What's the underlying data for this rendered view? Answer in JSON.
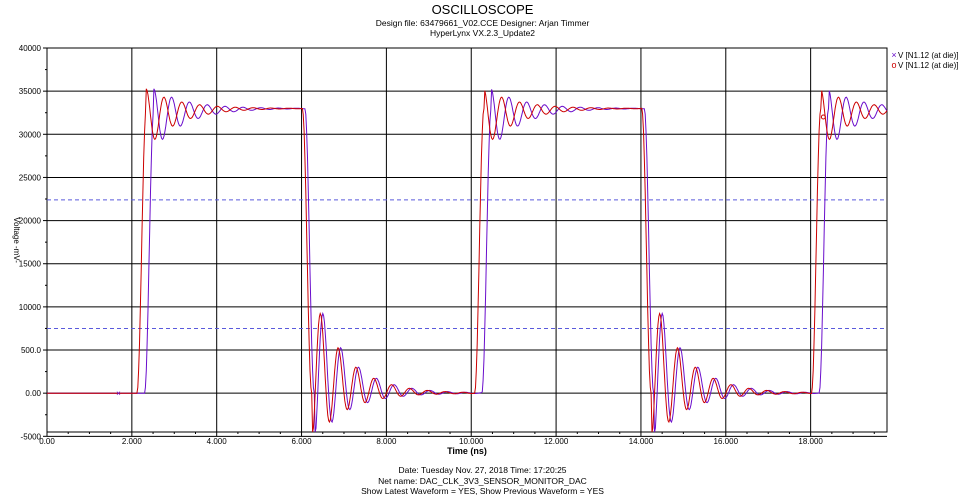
{
  "header": {
    "title": "OSCILLOSCOPE",
    "design_line": "Design file: 63479661_V02.CCE          Designer: Arjan Timmer",
    "version_line": "HyperLynx VX.2.3_Update2"
  },
  "footer": {
    "date_line": "Date: Tuesday Nov. 27, 2018  Time: 17:20:25",
    "net_line": "Net name: DAC_CLK_3V3_SENSOR_MONITOR_DAC",
    "show_line": "Show Latest Waveform = YES,  Show Previous Waveform = YES"
  },
  "legend": [
    {
      "marker": "×",
      "label": "V [N1.12 (at die)]",
      "color": "#6a0dcc"
    },
    {
      "marker": "o",
      "label": "V [N1.12 (at die)]",
      "color": "#cc0000"
    }
  ],
  "chart_data": {
    "type": "line",
    "xlabel": "Time (ns)",
    "ylabel": "Voltage -mV-",
    "xlim": [
      0,
      19.8
    ],
    "ylim": [
      -4500,
      40000
    ],
    "x_ticks": [
      "0.00",
      "2.000",
      "4.000",
      "6.000",
      "8.000",
      "10.000",
      "12.000",
      "14.000",
      "16.000",
      "18.000"
    ],
    "y_ticks": [
      "40000",
      "35000",
      "30000",
      "25000",
      "20000",
      "15000",
      "10000",
      "500.0",
      "0.00",
      "-5000"
    ],
    "threshold_lines_mV": [
      22400,
      7500
    ],
    "grid": true,
    "series": [
      {
        "name": "V [N1.12 (at die)]",
        "color": "#6a0dcc",
        "marker": "×",
        "edges": [
          {
            "t": 2.3,
            "dir": "rise"
          },
          {
            "t": 6.08,
            "dir": "fall"
          },
          {
            "t": 10.25,
            "dir": "rise"
          },
          {
            "t": 14.08,
            "dir": "fall"
          },
          {
            "t": 18.2,
            "dir": "rise"
          }
        ],
        "high_mV": 33000,
        "low_mV": 0
      },
      {
        "name": "V [N1.12 (at die)]",
        "color": "#cc0000",
        "marker": "o",
        "edges": [
          {
            "t": 2.12,
            "dir": "rise"
          },
          {
            "t": 6.02,
            "dir": "fall"
          },
          {
            "t": 10.08,
            "dir": "rise"
          },
          {
            "t": 14.02,
            "dir": "fall"
          },
          {
            "t": 18.02,
            "dir": "rise"
          }
        ],
        "high_mV": 33000,
        "low_mV": 0
      }
    ]
  }
}
